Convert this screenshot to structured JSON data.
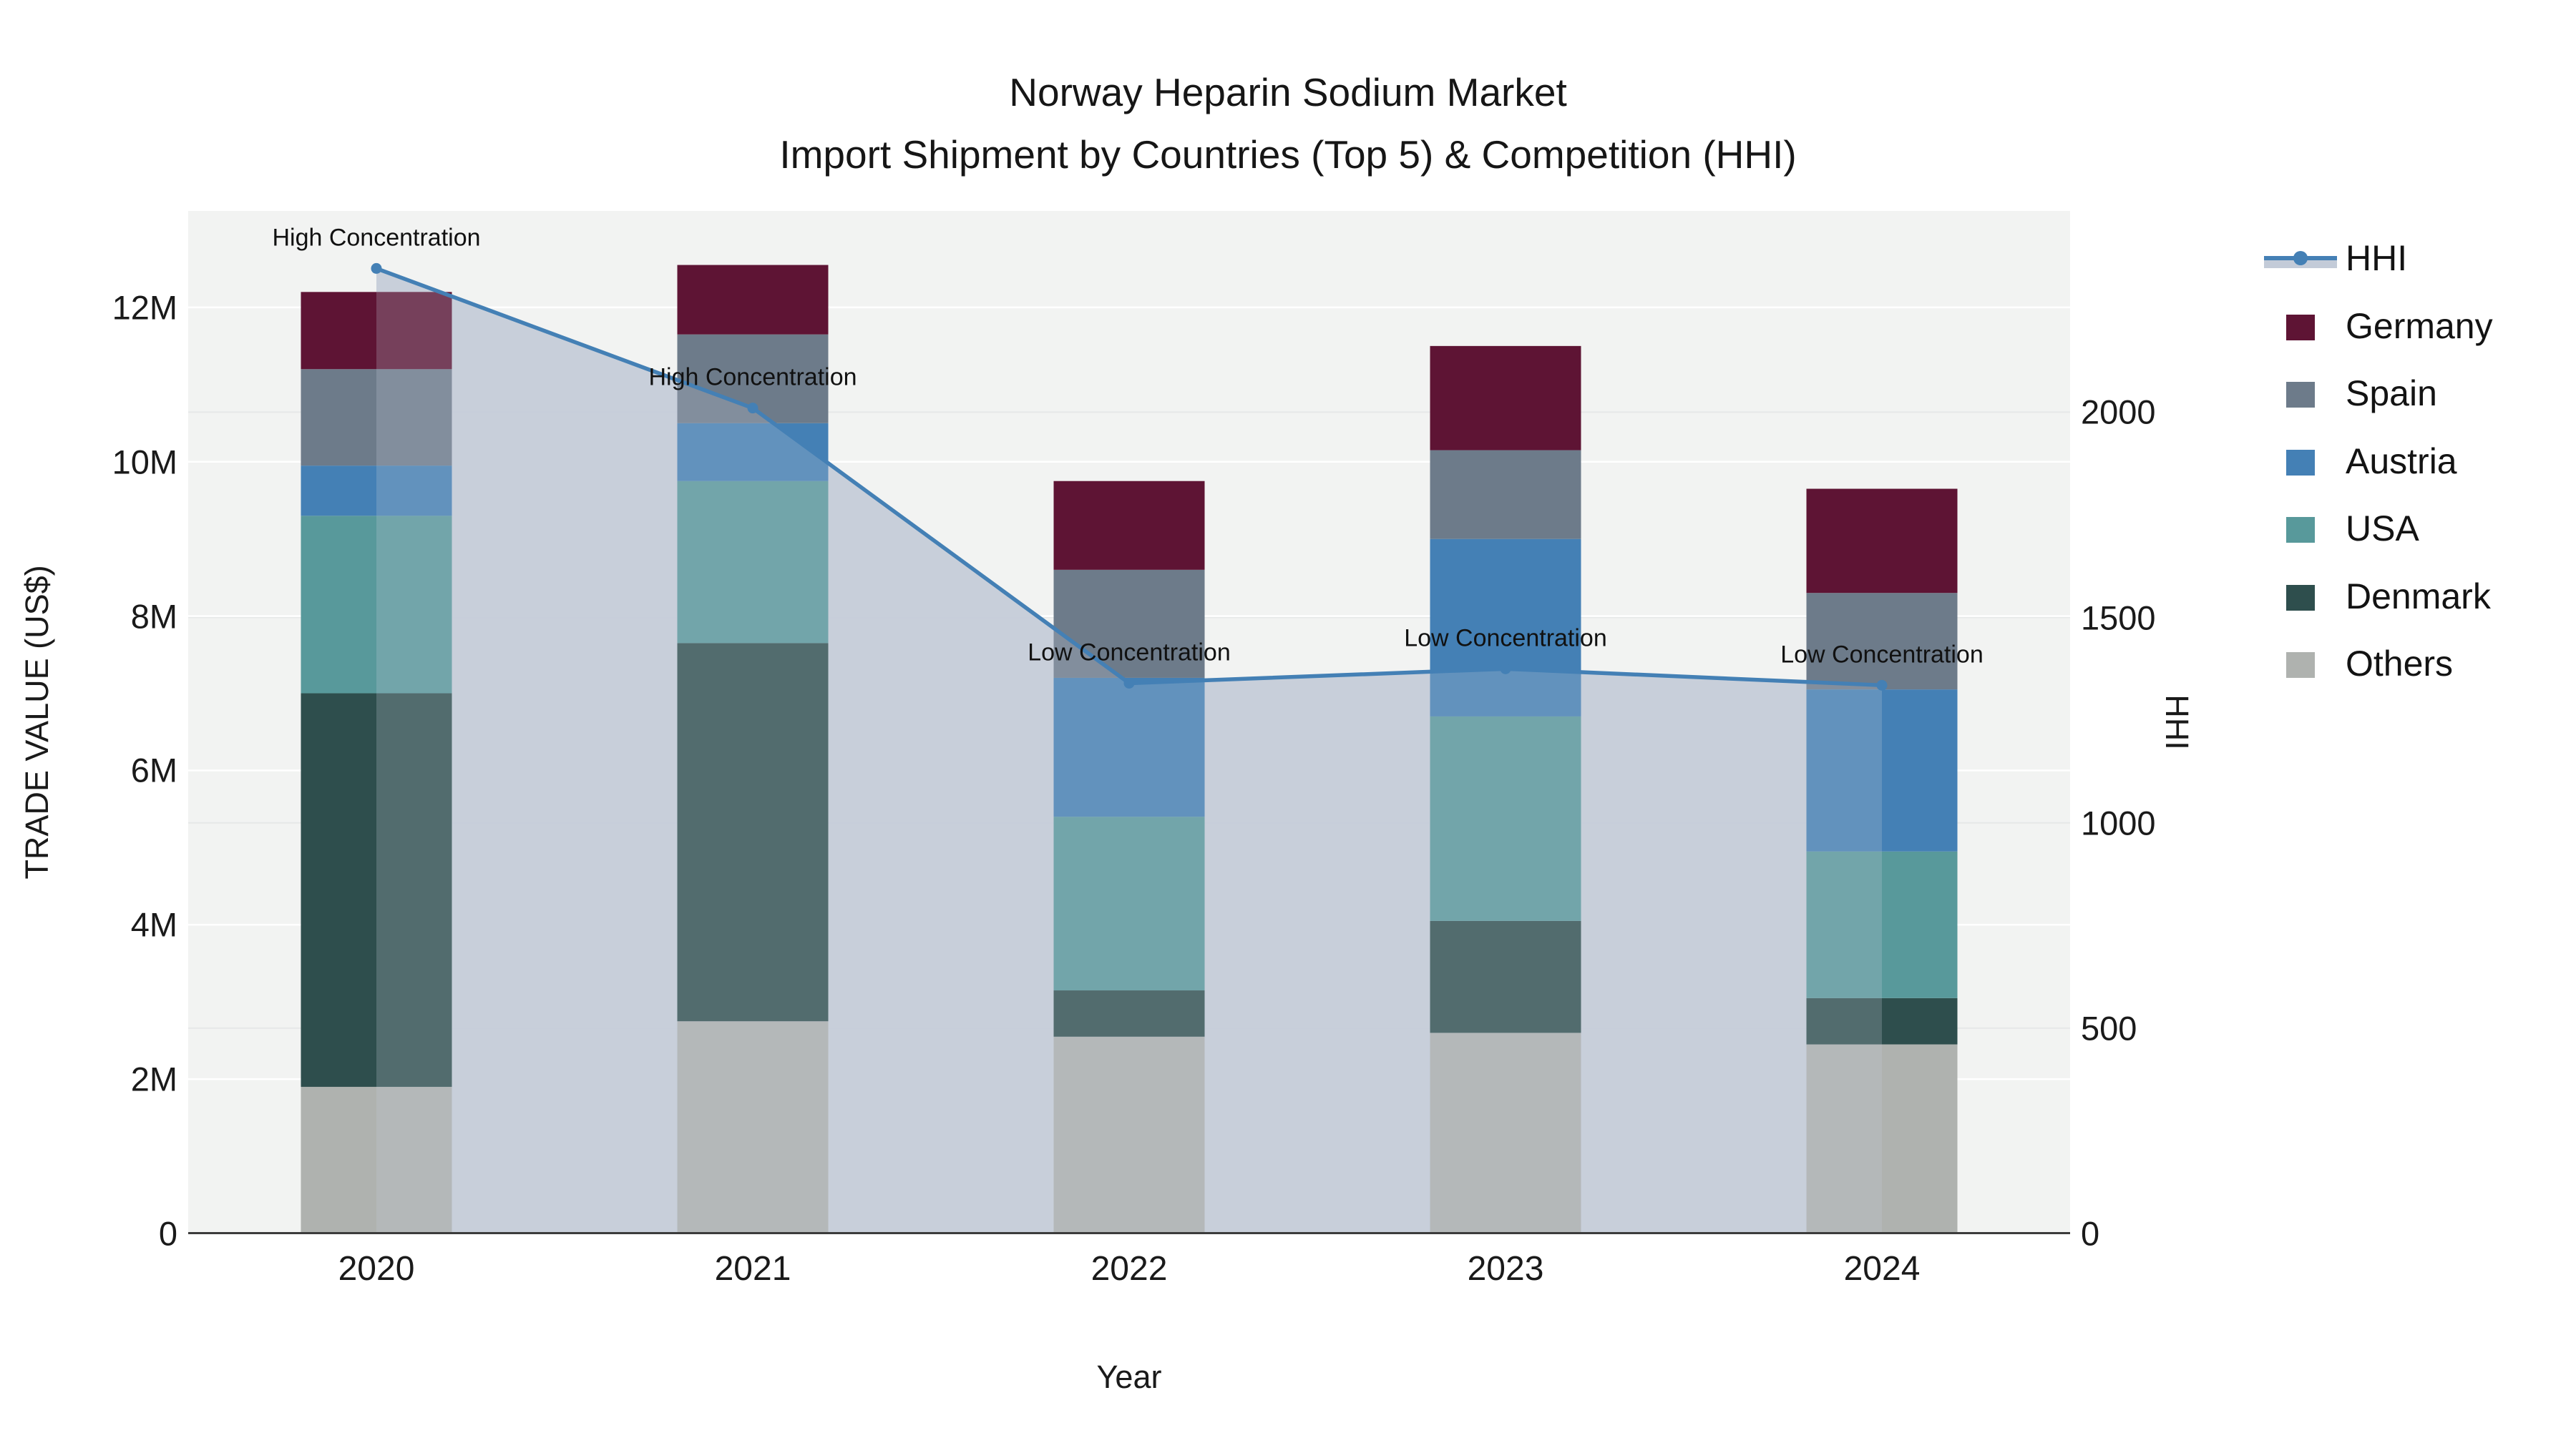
{
  "title": {
    "line1": "Norway Heparin Sodium Market",
    "line2": "Import Shipment by Countries (Top 5) & Competition (HHI)"
  },
  "axes": {
    "y_left": {
      "title": "TRADE VALUE (US$)",
      "tick_labels": [
        "0",
        "2M",
        "4M",
        "6M",
        "8M",
        "10M",
        "12M"
      ],
      "tick_values_millions": [
        0,
        2,
        4,
        6,
        8,
        10,
        12
      ],
      "range_millions": [
        0,
        13.25
      ]
    },
    "y_right": {
      "title": "HHI",
      "tick_labels": [
        "0",
        "500",
        "1000",
        "1500",
        "2000"
      ],
      "tick_values": [
        0,
        500,
        1000,
        1500,
        2000
      ],
      "range": [
        0,
        2490
      ]
    },
    "x": {
      "title": "Year",
      "tick_labels": [
        "2020",
        "2021",
        "2022",
        "2023",
        "2024"
      ]
    }
  },
  "legend": {
    "items": [
      {
        "label": "HHI",
        "type": "line",
        "color": "#4480b5"
      },
      {
        "label": "Germany",
        "type": "swatch",
        "color": "#5e1434"
      },
      {
        "label": "Spain",
        "type": "swatch",
        "color": "#6d7b8a"
      },
      {
        "label": "Austria",
        "type": "swatch",
        "color": "#4480b5"
      },
      {
        "label": "USA",
        "type": "swatch",
        "color": "#58999b"
      },
      {
        "label": "Denmark",
        "type": "swatch",
        "color": "#2e4e4d"
      },
      {
        "label": "Others",
        "type": "swatch",
        "color": "#afb2af"
      }
    ]
  },
  "chart_data": {
    "type": "bar",
    "subtype": "stacked-bars-with-line-dual-axis",
    "title": "Norway Heparin Sodium Market Import Shipment by Countries (Top 5) & Competition (HHI)",
    "xlabel": "Year",
    "ylabel": "TRADE VALUE (US$)",
    "y2label": "HHI",
    "categories": [
      "2020",
      "2021",
      "2022",
      "2023",
      "2024"
    ],
    "bar_value_unit": "million US$",
    "series": [
      {
        "name": "Others",
        "color": "#afb2af",
        "values": [
          1.9,
          2.75,
          2.55,
          2.6,
          2.45
        ]
      },
      {
        "name": "Denmark",
        "color": "#2e4e4d",
        "values": [
          5.1,
          4.9,
          0.6,
          1.45,
          0.6
        ]
      },
      {
        "name": "USA",
        "color": "#58999b",
        "values": [
          2.3,
          2.1,
          2.25,
          2.65,
          1.9
        ]
      },
      {
        "name": "Austria",
        "color": "#4480b5",
        "values": [
          0.65,
          0.75,
          1.8,
          2.3,
          2.1
        ]
      },
      {
        "name": "Spain",
        "color": "#6d7b8a",
        "values": [
          1.25,
          1.15,
          1.4,
          1.15,
          1.25
        ]
      },
      {
        "name": "Germany",
        "color": "#5e1434",
        "values": [
          1.0,
          0.9,
          1.15,
          1.35,
          1.35
        ]
      }
    ],
    "bar_totals_millions": [
      12.2,
      12.55,
      9.75,
      11.5,
      9.65
    ],
    "line": {
      "name": "HHI",
      "color": "#4480b5",
      "area_fill_color": "#c6cdd9",
      "values": [
        2350,
        2010,
        1340,
        1375,
        1335
      ]
    },
    "annotations": [
      {
        "x": "2020",
        "text": "High Concentration"
      },
      {
        "x": "2021",
        "text": "High Concentration"
      },
      {
        "x": "2022",
        "text": "Low Concentration"
      },
      {
        "x": "2023",
        "text": "Low Concentration"
      },
      {
        "x": "2024",
        "text": "Low Concentration"
      }
    ],
    "ylim_millions": [
      0,
      13.25
    ],
    "y2lim": [
      0,
      2490
    ],
    "grid": true,
    "legend_position": "right",
    "plot_background": "#f2f3f2"
  }
}
